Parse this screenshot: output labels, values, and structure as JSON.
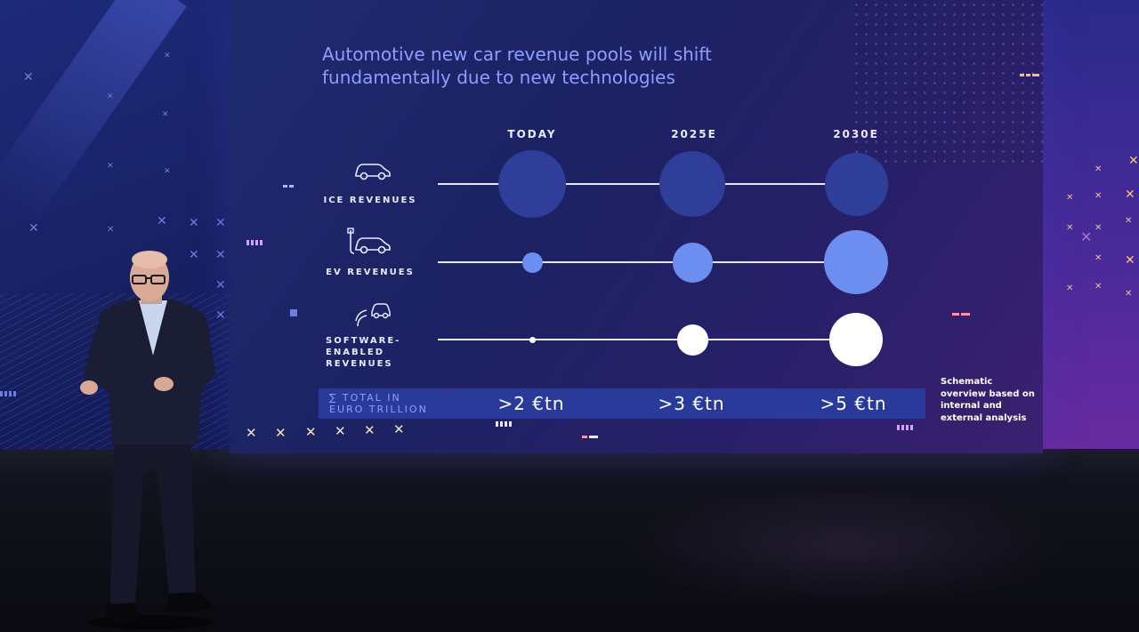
{
  "slide": {
    "title": "Automotive new car revenue pools will shift fundamentally due to new technologies",
    "columns": [
      "TODAY",
      "2025E",
      "2030E"
    ],
    "rows": [
      {
        "label": "ICE REVENUES",
        "icon": "car-icon",
        "color": "#2f3f99",
        "relative_size": [
          0.76,
          0.74,
          0.71
        ]
      },
      {
        "label": "EV REVENUES",
        "icon": "ev-charging-car-icon",
        "color": "#6c8ef0",
        "relative_size": [
          0.23,
          0.45,
          0.72
        ]
      },
      {
        "label": "SOFTWARE-\nENABLED\nREVENUES",
        "icon": "connected-car-icon",
        "color": "#ffffff",
        "relative_size": [
          0.07,
          0.35,
          0.6
        ]
      }
    ],
    "total": {
      "label": "∑ TOTAL IN\nEURO TRILLION",
      "values": [
        ">2 €tn",
        ">3 €tn",
        ">5 €tn"
      ]
    },
    "note": "Schematic overview based on internal and external analysis",
    "colors": {
      "title": "#8f9dff",
      "total_bar": "#2a3a9a",
      "background": "#1d2566"
    }
  }
}
